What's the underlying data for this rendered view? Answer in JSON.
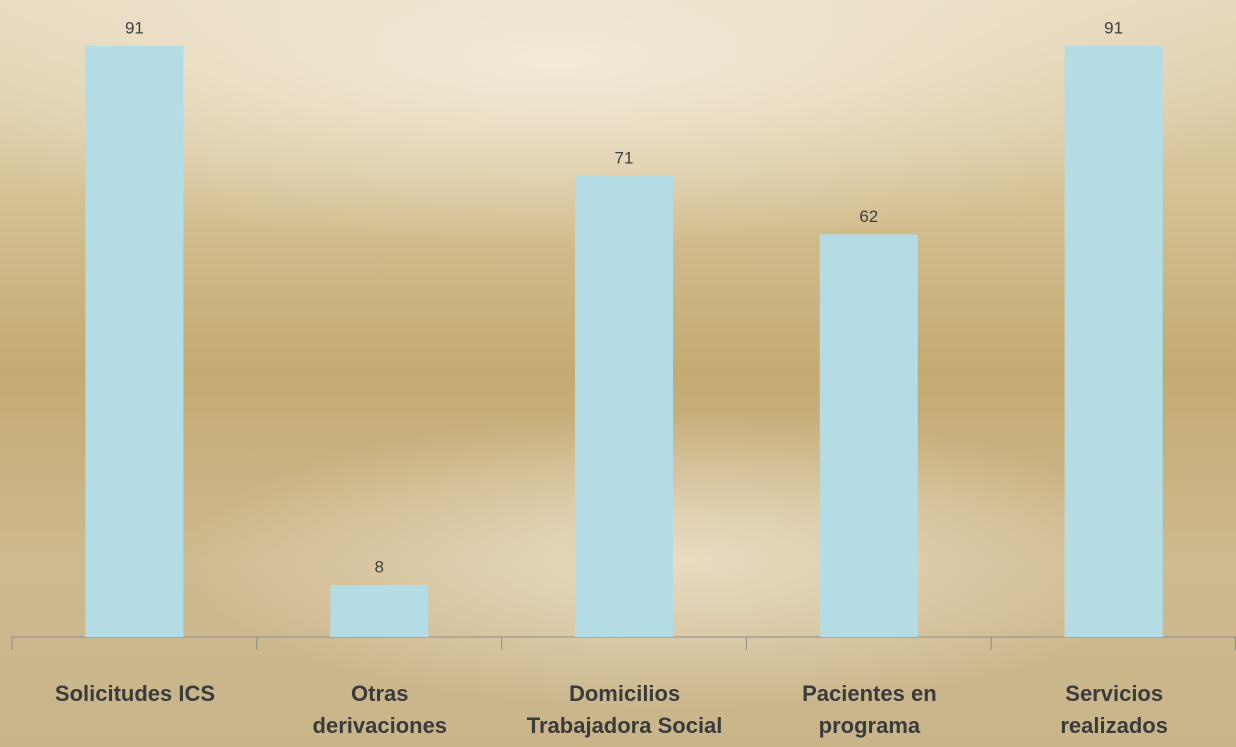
{
  "chart_data": {
    "type": "bar",
    "categories": [
      "Solicitudes ICS",
      "Otras\nderivaciones",
      "Domicilios\nTrabajadora Social",
      "Pacientes en\nprograma",
      "Servicios\nrealizados"
    ],
    "values": [
      91,
      8,
      71,
      62,
      91
    ],
    "color": "#b3dce4"
  }
}
